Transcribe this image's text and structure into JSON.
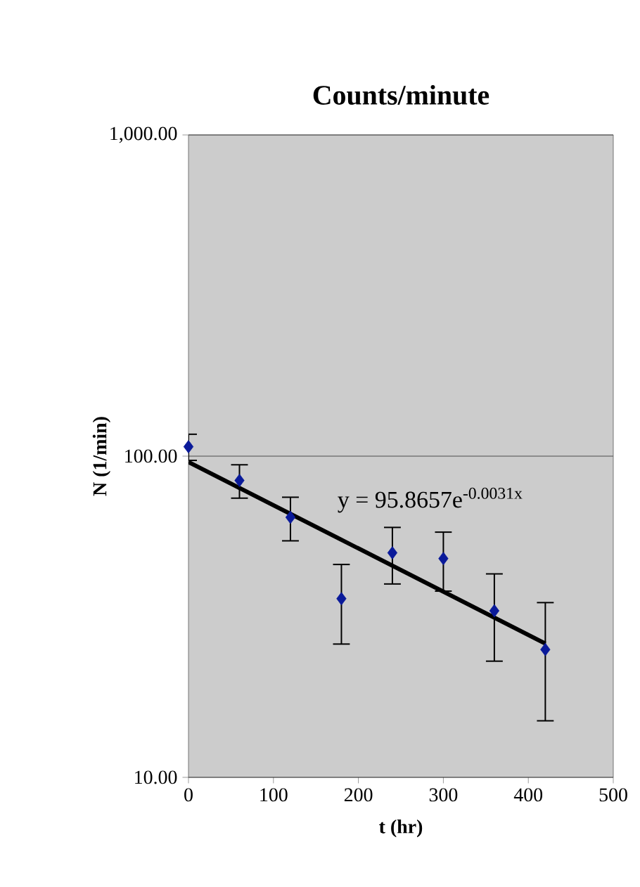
{
  "chart_data": {
    "type": "scatter",
    "title": "Counts/minute",
    "xlabel": "t (hr)",
    "ylabel": "N (1/min)",
    "annotations": [
      "y = 95.8657e$^{-0.0031x}$"
    ],
    "x": [
      0,
      60,
      120,
      180,
      240,
      300,
      360,
      420
    ],
    "series": [
      {
        "color": "#0a1a9a",
        "marker": "diamond",
        "values": [
          107,
          84,
          64.5,
          36,
          50,
          48,
          33,
          25
        ],
        "errors": [
          10,
          10,
          10,
          10,
          10,
          10,
          10,
          10
        ]
      },
      {
        "type": "line",
        "color": "#000000",
        "x": [
          0,
          420
        ],
        "values": [
          95.9,
          26.1
        ],
        "marker": "none"
      }
    ],
    "log": "y",
    "grid": "y",
    "xlim": [
      0,
      500
    ],
    "ylim": [
      10,
      1000
    ],
    "xticks": [
      0,
      100,
      200,
      300,
      400,
      500
    ],
    "yticks": [
      {
        "value": 10,
        "label": "10.00"
      },
      {
        "value": 100,
        "label": "100.00"
      },
      {
        "value": 1000,
        "label": "1,000.00"
      }
    ]
  }
}
